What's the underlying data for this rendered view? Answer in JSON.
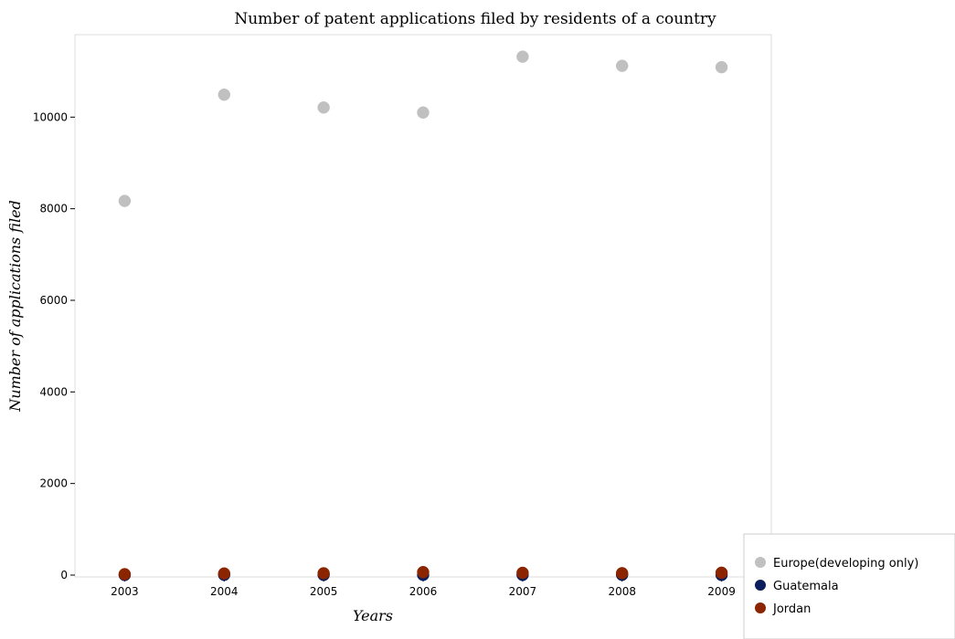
{
  "chart_data": {
    "type": "scatter",
    "title": "Number of patent applications filed by residents of a country",
    "xlabel": "Years",
    "ylabel": "Number of applications filed",
    "x": [
      "2003",
      "2004",
      "2005",
      "2006",
      "2007",
      "2008",
      "2009"
    ],
    "ylim": [
      0,
      11800
    ],
    "yticks": [
      0,
      2000,
      4000,
      6000,
      8000,
      10000
    ],
    "grid": false,
    "legend": "bottom-right",
    "series": [
      {
        "name": "Europe(developing only)",
        "color": "#c0c0c0",
        "values": [
          8170,
          10490,
          10210,
          10100,
          11320,
          11120,
          11090
        ]
      },
      {
        "name": "Guatemala",
        "color": "#0a1f5c",
        "values": [
          2,
          5,
          4,
          5,
          4,
          6,
          3
        ]
      },
      {
        "name": "Jordan",
        "color": "#8b2500",
        "values": [
          20,
          35,
          40,
          65,
          50,
          42,
          52
        ]
      }
    ]
  }
}
